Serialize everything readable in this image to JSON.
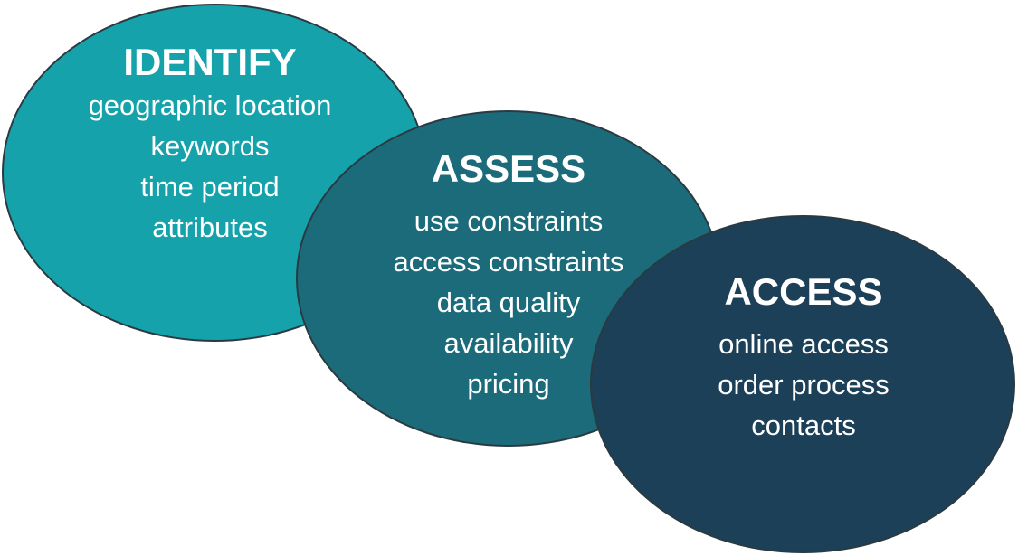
{
  "colors": {
    "identify": "#16a2ab",
    "assess": "#1b6b7a",
    "access": "#1c4058",
    "outline": "#2a3a42",
    "text": "#ffffff"
  },
  "stages": [
    {
      "key": "identify",
      "title": "IDENTIFY",
      "items": [
        "geographic location",
        "keywords",
        "time period",
        "attributes"
      ]
    },
    {
      "key": "assess",
      "title": "ASSESS",
      "items": [
        "use constraints",
        "access constraints",
        "data quality",
        "availability",
        "pricing"
      ]
    },
    {
      "key": "access",
      "title": "ACCESS",
      "items": [
        "online access",
        "order process",
        "contacts"
      ]
    }
  ]
}
